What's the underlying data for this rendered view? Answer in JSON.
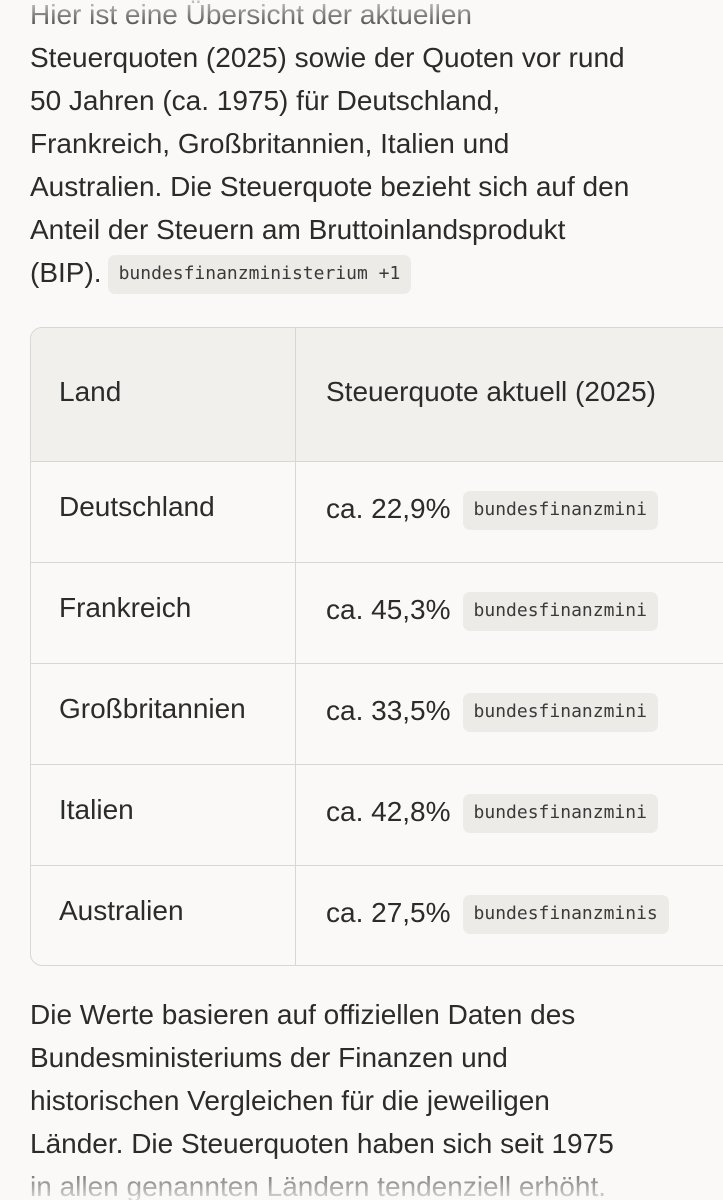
{
  "intro": {
    "lines": [
      "Hier ist eine Übersicht der aktuellen",
      "Steuerquoten (2025) sowie der Quoten vor rund",
      "50 Jahren (ca. 1975) für Deutschland,",
      "Frankreich, Großbritannien, Italien und",
      "Australien. Die Steuerquote bezieht sich auf den",
      "Anteil der Steuern am Bruttoinlandsprodukt",
      "(BIP)."
    ],
    "citation_chip": "bundesfinanzministerium +1"
  },
  "table": {
    "headers": [
      "Land",
      "Steuerquote aktuell (2025)"
    ],
    "rows": [
      {
        "land": "Deutschland",
        "quote": "ca. 22,9%",
        "source": "bundesfinanzmini"
      },
      {
        "land": "Frankreich",
        "quote": "ca. 45,3%",
        "source": "bundesfinanzmini"
      },
      {
        "land": "Großbritannien",
        "quote": "ca. 33,5%",
        "source": "bundesfinanzmini"
      },
      {
        "land": "Italien",
        "quote": "ca. 42,8%",
        "source": "bundesfinanzmini"
      },
      {
        "land": "Australien",
        "quote": "ca. 27,5%",
        "source": "bundesfinanzminis"
      }
    ]
  },
  "outro": {
    "lines": [
      "Die Werte basieren auf offiziellen Daten des",
      "Bundesministeriums der Finanzen und",
      "historischen Vergleichen für die jeweiligen",
      "Länder. Die Steuerquoten haben sich seit 1975",
      "in allen genannten Ländern tendenziell erhöht."
    ]
  }
}
